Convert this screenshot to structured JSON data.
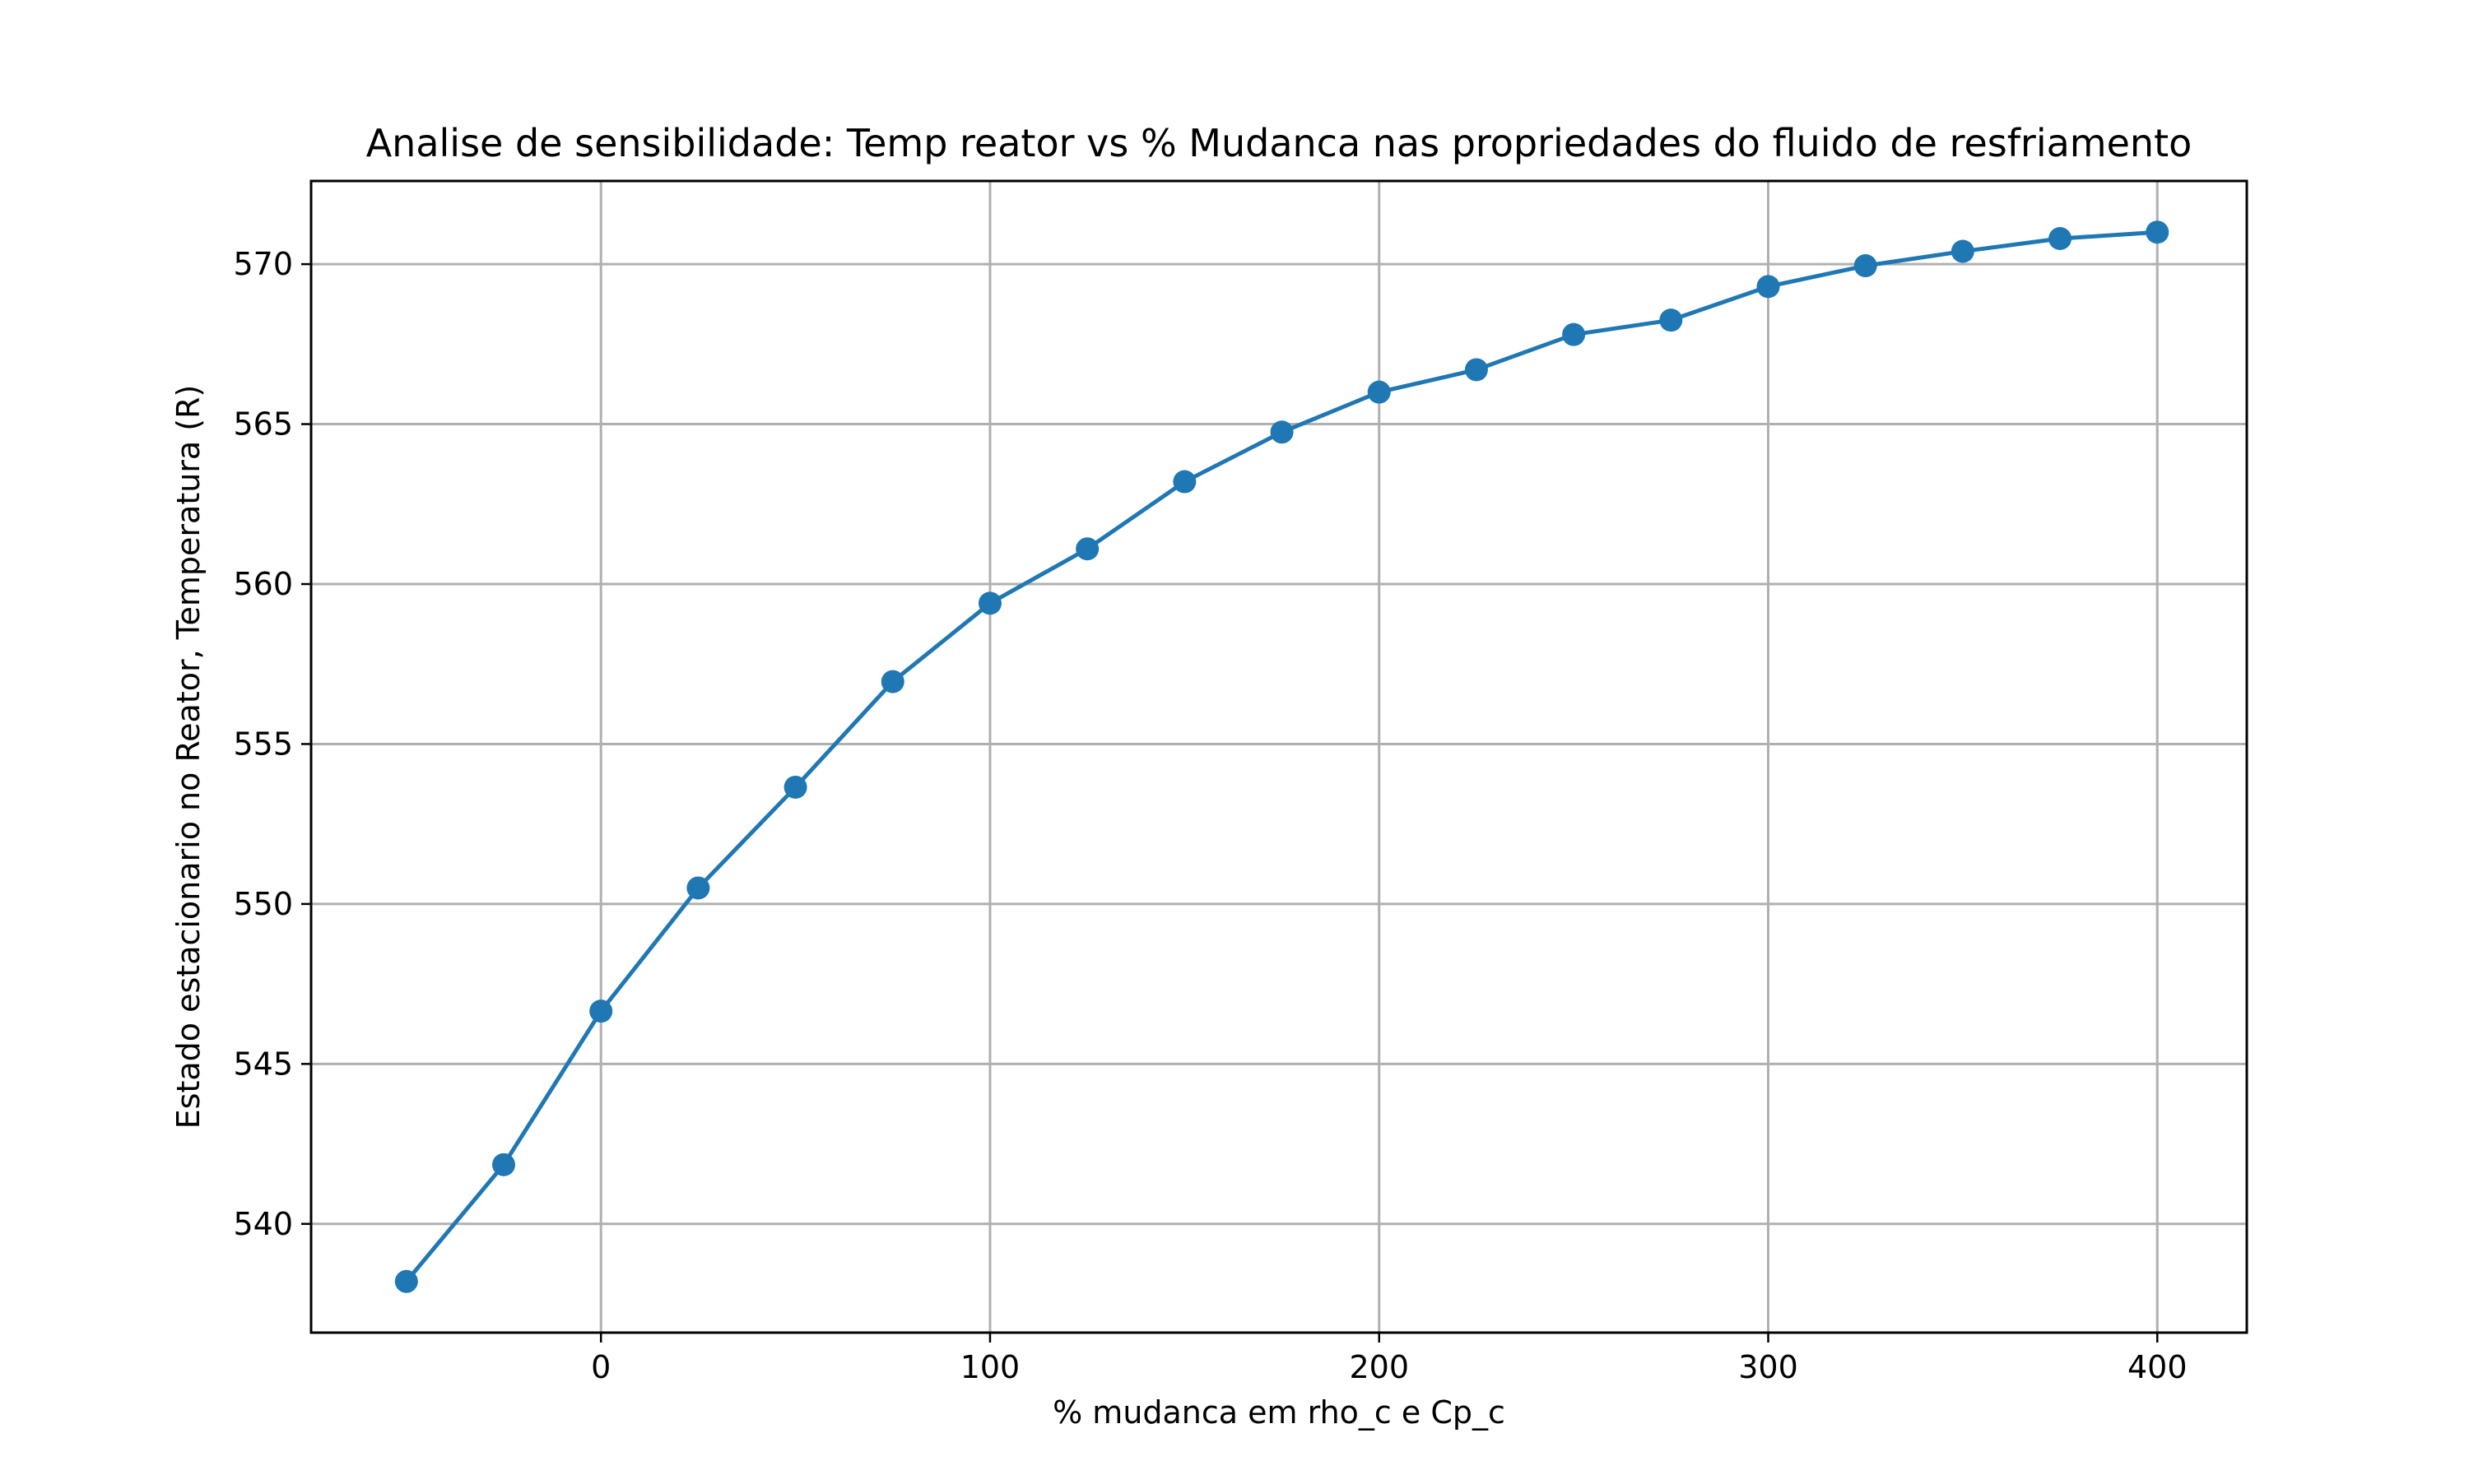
{
  "chart_data": {
    "type": "line",
    "title": "Analise de sensibilidade: Temp reator vs % Mudanca nas propriedades do fluido de resfriamento",
    "xlabel": "% mudanca em rho_c e Cp_c",
    "ylabel": "Estado estacionario no Reator, Temperatura (R)",
    "xlim": [
      -74.5,
      423
    ],
    "ylim": [
      536.6,
      572.6
    ],
    "xticks": [
      0,
      100,
      200,
      300,
      400
    ],
    "yticks": [
      540,
      545,
      550,
      555,
      560,
      565,
      570
    ],
    "grid": true,
    "series": [
      {
        "color": "#1f77b4",
        "marker": "circle",
        "x": [
          -50,
          -25,
          0,
          25,
          50,
          75,
          100,
          125,
          150,
          175,
          200,
          225,
          250,
          275,
          300,
          325,
          350,
          375,
          400
        ],
        "y": [
          538.2,
          541.85,
          546.65,
          550.5,
          553.65,
          556.95,
          559.4,
          561.1,
          563.2,
          564.75,
          566.0,
          566.7,
          567.8,
          568.25,
          569.3,
          569.95,
          570.4,
          570.8,
          571.0
        ]
      }
    ]
  }
}
